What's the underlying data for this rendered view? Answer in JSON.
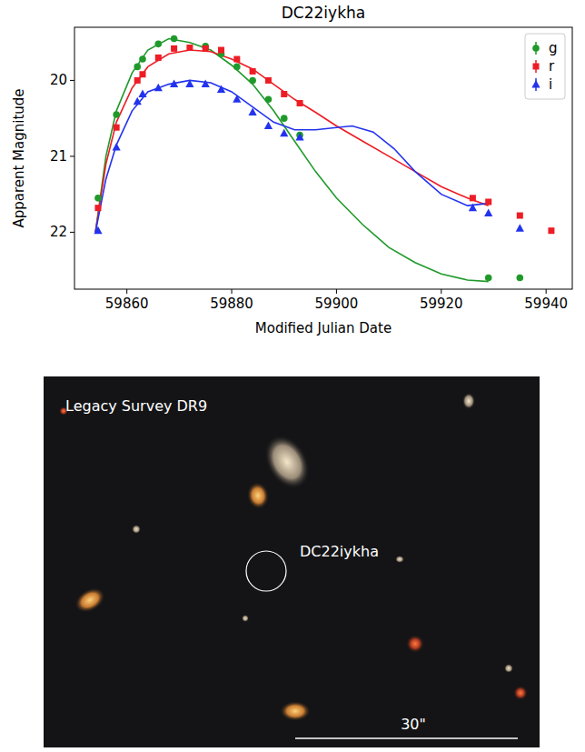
{
  "chart_data": {
    "type": "scatter",
    "title": "DC22iykha",
    "x_label": "Modified Julian Date",
    "y_label": "Apparent Magnitude",
    "xlim": [
      59850,
      59945
    ],
    "ylim": [
      22.75,
      19.3
    ],
    "xticks": [
      59860,
      59880,
      59900,
      59920,
      59940
    ],
    "yticks": [
      20,
      21,
      22
    ],
    "grid": false,
    "legend": "upper right",
    "series": [
      {
        "name": "g",
        "color": "#1f9a2a",
        "marker": "circle",
        "x": [
          59854.5,
          59858,
          59862,
          59863,
          59866,
          59869,
          59875,
          59878,
          59881,
          59884,
          59887,
          59890,
          59893,
          59929,
          59935
        ],
        "values": [
          21.55,
          20.45,
          19.82,
          19.72,
          19.52,
          19.45,
          19.55,
          19.65,
          19.82,
          20.0,
          20.25,
          20.5,
          20.72,
          22.6,
          22.6
        ],
        "model": {
          "x": [
            59854,
            59856,
            59858,
            59861,
            59864,
            59868,
            59872,
            59876,
            59880,
            59884,
            59888,
            59892,
            59896,
            59900,
            59905,
            59910,
            59915,
            59920,
            59925,
            59929
          ],
          "values": [
            22.0,
            21.0,
            20.4,
            19.9,
            19.6,
            19.45,
            19.5,
            19.6,
            19.8,
            20.05,
            20.4,
            20.8,
            21.2,
            21.55,
            21.9,
            22.2,
            22.4,
            22.55,
            22.63,
            22.65
          ]
        }
      },
      {
        "name": "r",
        "color": "#ee1c25",
        "marker": "square",
        "x": [
          59854.5,
          59858,
          59862,
          59863,
          59866,
          59869,
          59872,
          59875,
          59878,
          59881,
          59884,
          59887,
          59890,
          59893,
          59926,
          59929,
          59935,
          59941
        ],
        "values": [
          21.68,
          20.62,
          20.0,
          19.92,
          19.7,
          19.58,
          19.57,
          19.58,
          19.6,
          19.72,
          19.88,
          20.0,
          20.18,
          20.3,
          21.55,
          21.6,
          21.78,
          21.98
        ],
        "model": {
          "x": [
            59854,
            59856,
            59858,
            59861,
            59864,
            59868,
            59872,
            59876,
            59880,
            59884,
            59888,
            59892,
            59896,
            59900,
            59905,
            59910,
            59915,
            59920,
            59925,
            59929
          ],
          "values": [
            22.0,
            21.1,
            20.55,
            20.1,
            19.82,
            19.65,
            19.6,
            19.62,
            19.72,
            19.85,
            20.05,
            20.25,
            20.42,
            20.6,
            20.8,
            21.0,
            21.2,
            21.4,
            21.55,
            21.65
          ]
        }
      },
      {
        "name": "i",
        "color": "#2233ee",
        "marker": "triangle",
        "x": [
          59854.5,
          59858,
          59862,
          59863,
          59866,
          59869,
          59872,
          59875,
          59878,
          59881,
          59884,
          59887,
          59890,
          59893,
          59926,
          59929,
          59935
        ],
        "values": [
          21.98,
          20.88,
          20.28,
          20.18,
          20.1,
          20.05,
          20.05,
          20.05,
          20.12,
          20.25,
          20.42,
          20.6,
          20.7,
          20.75,
          21.68,
          21.75,
          21.95
        ],
        "model": {
          "x": [
            59854,
            59856,
            59858,
            59861,
            59864,
            59868,
            59872,
            59876,
            59880,
            59884,
            59888,
            59892,
            59896,
            59900,
            59903,
            59907,
            59911,
            59915,
            59920,
            59925,
            59929
          ],
          "values": [
            22.0,
            21.3,
            20.85,
            20.4,
            20.15,
            20.05,
            20.0,
            20.03,
            20.15,
            20.35,
            20.55,
            20.65,
            20.65,
            20.62,
            20.6,
            20.68,
            20.9,
            21.2,
            21.5,
            21.65,
            21.62
          ]
        }
      }
    ]
  },
  "image": {
    "survey_label": "Legacy Survey DR9",
    "target_label": "DC22iykha",
    "scale_label": "30\""
  }
}
